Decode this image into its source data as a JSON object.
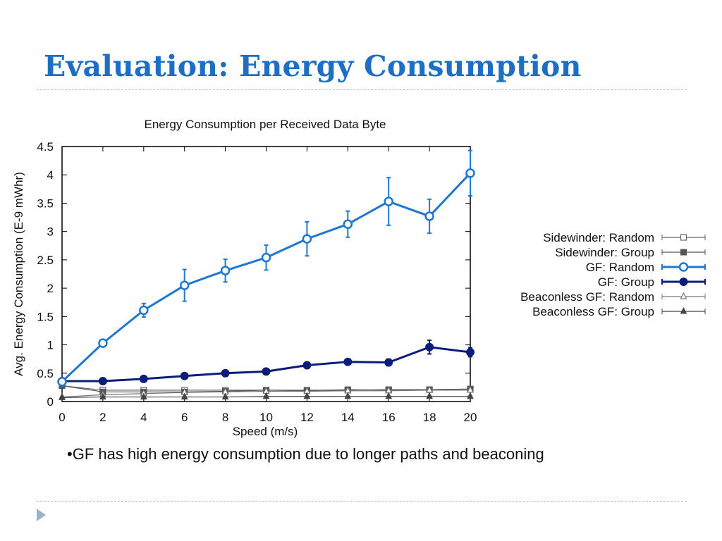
{
  "slide": {
    "title": "Evaluation: Energy Consumption",
    "bullet": "•GF has high energy consumption due to longer paths and beaconing"
  },
  "chart_data": {
    "type": "line",
    "title": "Energy Consumption per Received Data Byte",
    "xlabel": "Speed (m/s)",
    "ylabel": "Avg. Energy Consumption (E-9 mWhr)",
    "x": [
      0,
      2,
      4,
      6,
      8,
      10,
      12,
      14,
      16,
      18,
      20
    ],
    "xticks": [
      "0",
      "2",
      "4",
      "6",
      "8",
      "10",
      "12",
      "14",
      "16",
      "18",
      "20"
    ],
    "yticks": [
      "0",
      "0.5",
      "1",
      "1.5",
      "2",
      "2.5",
      "3",
      "3.5",
      "4",
      "4.5"
    ],
    "xlim": [
      0,
      20
    ],
    "ylim": [
      0,
      4.5
    ],
    "grid": false,
    "legend_position": "right",
    "series": [
      {
        "name": "Sidewinder: Random",
        "marker": "open-square",
        "color": "#666666",
        "width": 1.2,
        "values": [
          0.28,
          0.2,
          0.2,
          0.2,
          0.2,
          0.2,
          0.2,
          0.2,
          0.21,
          0.21,
          0.22
        ],
        "errors": [
          0.03,
          0.02,
          0.02,
          0.02,
          0.02,
          0.02,
          0.02,
          0.03,
          0.02,
          0.02,
          0.02
        ]
      },
      {
        "name": "Sidewinder: Group",
        "marker": "filled-square",
        "color": "#555555",
        "width": 1.2,
        "values": [
          0.28,
          0.17,
          0.17,
          0.17,
          0.18,
          0.2,
          0.19,
          0.21,
          0.2,
          0.21,
          0.22
        ],
        "errors": [
          0.03,
          0.02,
          0.02,
          0.02,
          0.02,
          0.03,
          0.02,
          0.03,
          0.02,
          0.02,
          0.02
        ]
      },
      {
        "name": "GF: Random",
        "marker": "open-circle",
        "color": "#1f77d2",
        "width": 3,
        "values": [
          0.35,
          1.03,
          1.61,
          2.05,
          2.31,
          2.54,
          2.87,
          3.13,
          3.53,
          3.27,
          4.03
        ],
        "errors": [
          0.03,
          0.04,
          0.12,
          0.28,
          0.2,
          0.22,
          0.3,
          0.23,
          0.42,
          0.3,
          0.4
        ]
      },
      {
        "name": "GF: Group",
        "marker": "filled-circle",
        "color": "#0c1c7a",
        "width": 3,
        "values": [
          0.36,
          0.36,
          0.4,
          0.45,
          0.5,
          0.53,
          0.64,
          0.7,
          0.69,
          0.96,
          0.87
        ],
        "errors": [
          0.02,
          0.02,
          0.02,
          0.03,
          0.03,
          0.03,
          0.05,
          0.04,
          0.06,
          0.12,
          0.08
        ]
      },
      {
        "name": "Beaconless GF: Random",
        "marker": "open-triangle",
        "color": "#777777",
        "width": 1.2,
        "values": [
          0.08,
          0.12,
          0.14,
          0.16,
          0.17,
          0.18,
          0.18,
          0.19,
          0.19,
          0.2,
          0.2
        ],
        "errors": [
          0.01,
          0.01,
          0.01,
          0.01,
          0.01,
          0.01,
          0.01,
          0.01,
          0.01,
          0.01,
          0.01
        ]
      },
      {
        "name": "Beaconless GF: Group",
        "marker": "filled-triangle",
        "color": "#444444",
        "width": 1.2,
        "values": [
          0.07,
          0.08,
          0.08,
          0.08,
          0.08,
          0.09,
          0.09,
          0.09,
          0.09,
          0.09,
          0.09
        ],
        "errors": [
          0.01,
          0.01,
          0.01,
          0.01,
          0.01,
          0.01,
          0.01,
          0.01,
          0.01,
          0.01,
          0.01
        ]
      }
    ]
  }
}
